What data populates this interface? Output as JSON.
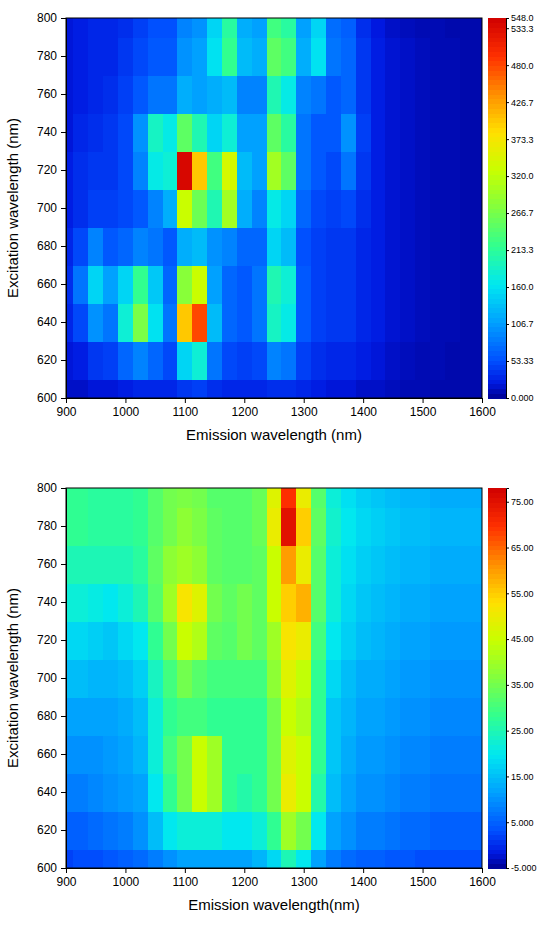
{
  "chart_data": [
    {
      "type": "heatmap",
      "x_label": "Emission wavelength (nm)",
      "y_label": "Excitation wavelength (nm)",
      "x": [
        900,
        925,
        950,
        975,
        1000,
        1025,
        1050,
        1075,
        1100,
        1125,
        1150,
        1175,
        1200,
        1225,
        1250,
        1275,
        1300,
        1325,
        1350,
        1375,
        1400,
        1425,
        1450,
        1475,
        1500,
        1525,
        1550,
        1575,
        1600
      ],
      "y": [
        600,
        620,
        640,
        660,
        680,
        700,
        720,
        740,
        760,
        780,
        800
      ],
      "values": [
        [
          15,
          15,
          20,
          20,
          25,
          30,
          30,
          30,
          40,
          45,
          35,
          30,
          30,
          30,
          35,
          35,
          30,
          25,
          20,
          20,
          15,
          15,
          12,
          10,
          10,
          8,
          8,
          8,
          8
        ],
        [
          20,
          25,
          40,
          45,
          70,
          90,
          70,
          50,
          150,
          180,
          80,
          50,
          45,
          50,
          90,
          80,
          45,
          35,
          30,
          30,
          25,
          20,
          15,
          12,
          10,
          10,
          8,
          8,
          8
        ],
        [
          30,
          50,
          100,
          80,
          180,
          270,
          160,
          80,
          400,
          480,
          130,
          70,
          60,
          80,
          190,
          170,
          60,
          45,
          40,
          40,
          30,
          25,
          18,
          15,
          12,
          10,
          10,
          8,
          8
        ],
        [
          35,
          80,
          150,
          110,
          150,
          220,
          140,
          70,
          280,
          330,
          110,
          70,
          60,
          80,
          200,
          180,
          60,
          45,
          40,
          40,
          30,
          25,
          18,
          15,
          12,
          10,
          10,
          8,
          8
        ],
        [
          30,
          50,
          90,
          60,
          70,
          90,
          80,
          60,
          120,
          130,
          100,
          90,
          70,
          70,
          150,
          130,
          55,
          45,
          40,
          40,
          30,
          25,
          18,
          15,
          12,
          10,
          10,
          8,
          8
        ],
        [
          25,
          35,
          45,
          45,
          50,
          60,
          90,
          120,
          330,
          260,
          200,
          300,
          120,
          90,
          170,
          150,
          70,
          50,
          45,
          50,
          35,
          25,
          18,
          15,
          12,
          10,
          10,
          8,
          8
        ],
        [
          25,
          35,
          40,
          40,
          50,
          90,
          170,
          180,
          540,
          400,
          230,
          340,
          130,
          110,
          300,
          250,
          80,
          60,
          50,
          80,
          40,
          25,
          18,
          15,
          12,
          10,
          10,
          8,
          8
        ],
        [
          20,
          30,
          35,
          40,
          50,
          100,
          190,
          170,
          250,
          200,
          150,
          180,
          110,
          110,
          250,
          210,
          80,
          60,
          60,
          100,
          45,
          25,
          18,
          15,
          12,
          10,
          10,
          8,
          8
        ],
        [
          20,
          25,
          30,
          35,
          45,
          60,
          80,
          80,
          120,
          110,
          120,
          130,
          90,
          90,
          200,
          170,
          90,
          80,
          60,
          70,
          40,
          25,
          18,
          15,
          12,
          10,
          10,
          8,
          8
        ],
        [
          20,
          25,
          30,
          30,
          40,
          50,
          60,
          60,
          100,
          110,
          160,
          220,
          130,
          120,
          250,
          230,
          120,
          160,
          80,
          70,
          40,
          25,
          18,
          15,
          12,
          10,
          10,
          8,
          8
        ],
        [
          20,
          25,
          30,
          30,
          35,
          45,
          55,
          55,
          90,
          100,
          150,
          210,
          120,
          110,
          230,
          210,
          110,
          150,
          75,
          65,
          35,
          22,
          15,
          12,
          10,
          10,
          8,
          8,
          8
        ]
      ],
      "xlim": [
        900,
        1600
      ],
      "ylim": [
        600,
        800
      ],
      "xticks": [
        900,
        1000,
        1100,
        1200,
        1300,
        1400,
        1500,
        1600
      ],
      "yticks": [
        600,
        620,
        640,
        660,
        680,
        700,
        720,
        740,
        760,
        780,
        800
      ],
      "zlim": [
        0,
        548
      ],
      "zticks": [
        {
          "value": 0,
          "label": "0.000"
        },
        53.33,
        106.7,
        {
          "value": 160,
          "label": "160.0"
        },
        213.3,
        266.7,
        {
          "value": 320,
          "label": "320.0"
        },
        373.3,
        426.7,
        {
          "value": 480,
          "label": "480.0"
        },
        533.3,
        {
          "value": 548,
          "label": "548.0"
        }
      ]
    },
    {
      "type": "heatmap",
      "x_label": "Emission wavelength(nm)",
      "y_label": "Excitation wavelength (nm)",
      "x": [
        900,
        925,
        950,
        975,
        1000,
        1025,
        1050,
        1075,
        1100,
        1125,
        1150,
        1175,
        1200,
        1225,
        1250,
        1275,
        1300,
        1325,
        1350,
        1375,
        1400,
        1425,
        1450,
        1475,
        1500,
        1525,
        1550,
        1575,
        1600
      ],
      "y": [
        600,
        620,
        640,
        660,
        680,
        700,
        720,
        740,
        760,
        780,
        800
      ],
      "values": [
        [
          2,
          3,
          3,
          4,
          5,
          6,
          8,
          10,
          12,
          12,
          12,
          12,
          12,
          14,
          18,
          25,
          20,
          12,
          8,
          6,
          5,
          5,
          4,
          4,
          3,
          3,
          3,
          3,
          3
        ],
        [
          5,
          5,
          6,
          7,
          8,
          10,
          15,
          20,
          22,
          22,
          22,
          20,
          20,
          22,
          28,
          40,
          35,
          20,
          12,
          10,
          8,
          8,
          7,
          6,
          6,
          5,
          5,
          5,
          5
        ],
        [
          8,
          8,
          9,
          10,
          11,
          12,
          20,
          28,
          35,
          45,
          40,
          28,
          26,
          28,
          35,
          50,
          45,
          26,
          15,
          12,
          10,
          10,
          9,
          8,
          8,
          7,
          7,
          7,
          7
        ],
        [
          10,
          10,
          10,
          11,
          12,
          14,
          22,
          30,
          35,
          45,
          40,
          28,
          28,
          28,
          35,
          48,
          45,
          28,
          16,
          13,
          11,
          11,
          10,
          9,
          9,
          8,
          8,
          8,
          8
        ],
        [
          12,
          12,
          12,
          12,
          13,
          15,
          22,
          28,
          30,
          30,
          28,
          28,
          28,
          28,
          35,
          45,
          42,
          28,
          16,
          14,
          12,
          12,
          11,
          10,
          10,
          9,
          9,
          9,
          9
        ],
        [
          15,
          15,
          14,
          14,
          15,
          17,
          24,
          30,
          35,
          32,
          30,
          30,
          30,
          30,
          38,
          48,
          44,
          28,
          18,
          15,
          13,
          13,
          12,
          11,
          11,
          10,
          10,
          10,
          10
        ],
        [
          18,
          18,
          17,
          16,
          18,
          20,
          28,
          35,
          45,
          42,
          33,
          32,
          35,
          33,
          40,
          52,
          50,
          30,
          20,
          17,
          15,
          14,
          13,
          12,
          12,
          11,
          11,
          11,
          11
        ],
        [
          22,
          22,
          21,
          20,
          22,
          25,
          32,
          40,
          52,
          48,
          35,
          33,
          35,
          33,
          45,
          55,
          58,
          32,
          22,
          18,
          16,
          15,
          14,
          13,
          13,
          12,
          12,
          12,
          12
        ],
        [
          25,
          25,
          25,
          25,
          25,
          27,
          33,
          38,
          40,
          38,
          33,
          32,
          32,
          33,
          45,
          60,
          50,
          32,
          22,
          19,
          17,
          16,
          15,
          14,
          14,
          13,
          13,
          13,
          13
        ],
        [
          28,
          28,
          27,
          27,
          27,
          28,
          32,
          35,
          38,
          36,
          33,
          32,
          32,
          34,
          50,
          75,
          55,
          33,
          23,
          20,
          18,
          17,
          16,
          15,
          15,
          14,
          14,
          14,
          14
        ],
        [
          28,
          28,
          27,
          27,
          27,
          28,
          32,
          35,
          36,
          35,
          32,
          32,
          32,
          34,
          48,
          70,
          50,
          32,
          22,
          19,
          17,
          16,
          15,
          14,
          14,
          13,
          13,
          13,
          13
        ]
      ],
      "xlim": [
        900,
        1600
      ],
      "ylim": [
        600,
        800
      ],
      "xticks": [
        900,
        1000,
        1100,
        1200,
        1300,
        1400,
        1500,
        1600
      ],
      "yticks": [
        600,
        620,
        640,
        660,
        680,
        700,
        720,
        740,
        760,
        780,
        800
      ],
      "zlim": [
        -5,
        78
      ],
      "zticks": [
        {
          "value": -5,
          "label": "-5.000"
        },
        {
          "value": 5,
          "label": "5.000"
        },
        {
          "value": 15,
          "label": "15.00"
        },
        {
          "value": 25,
          "label": "25.00"
        },
        {
          "value": 35,
          "label": "35.00"
        },
        {
          "value": 45,
          "label": "45.00"
        },
        {
          "value": 55,
          "label": "55.00"
        },
        {
          "value": 65,
          "label": "65.00"
        },
        {
          "value": 75,
          "label": "75.00"
        }
      ]
    }
  ]
}
